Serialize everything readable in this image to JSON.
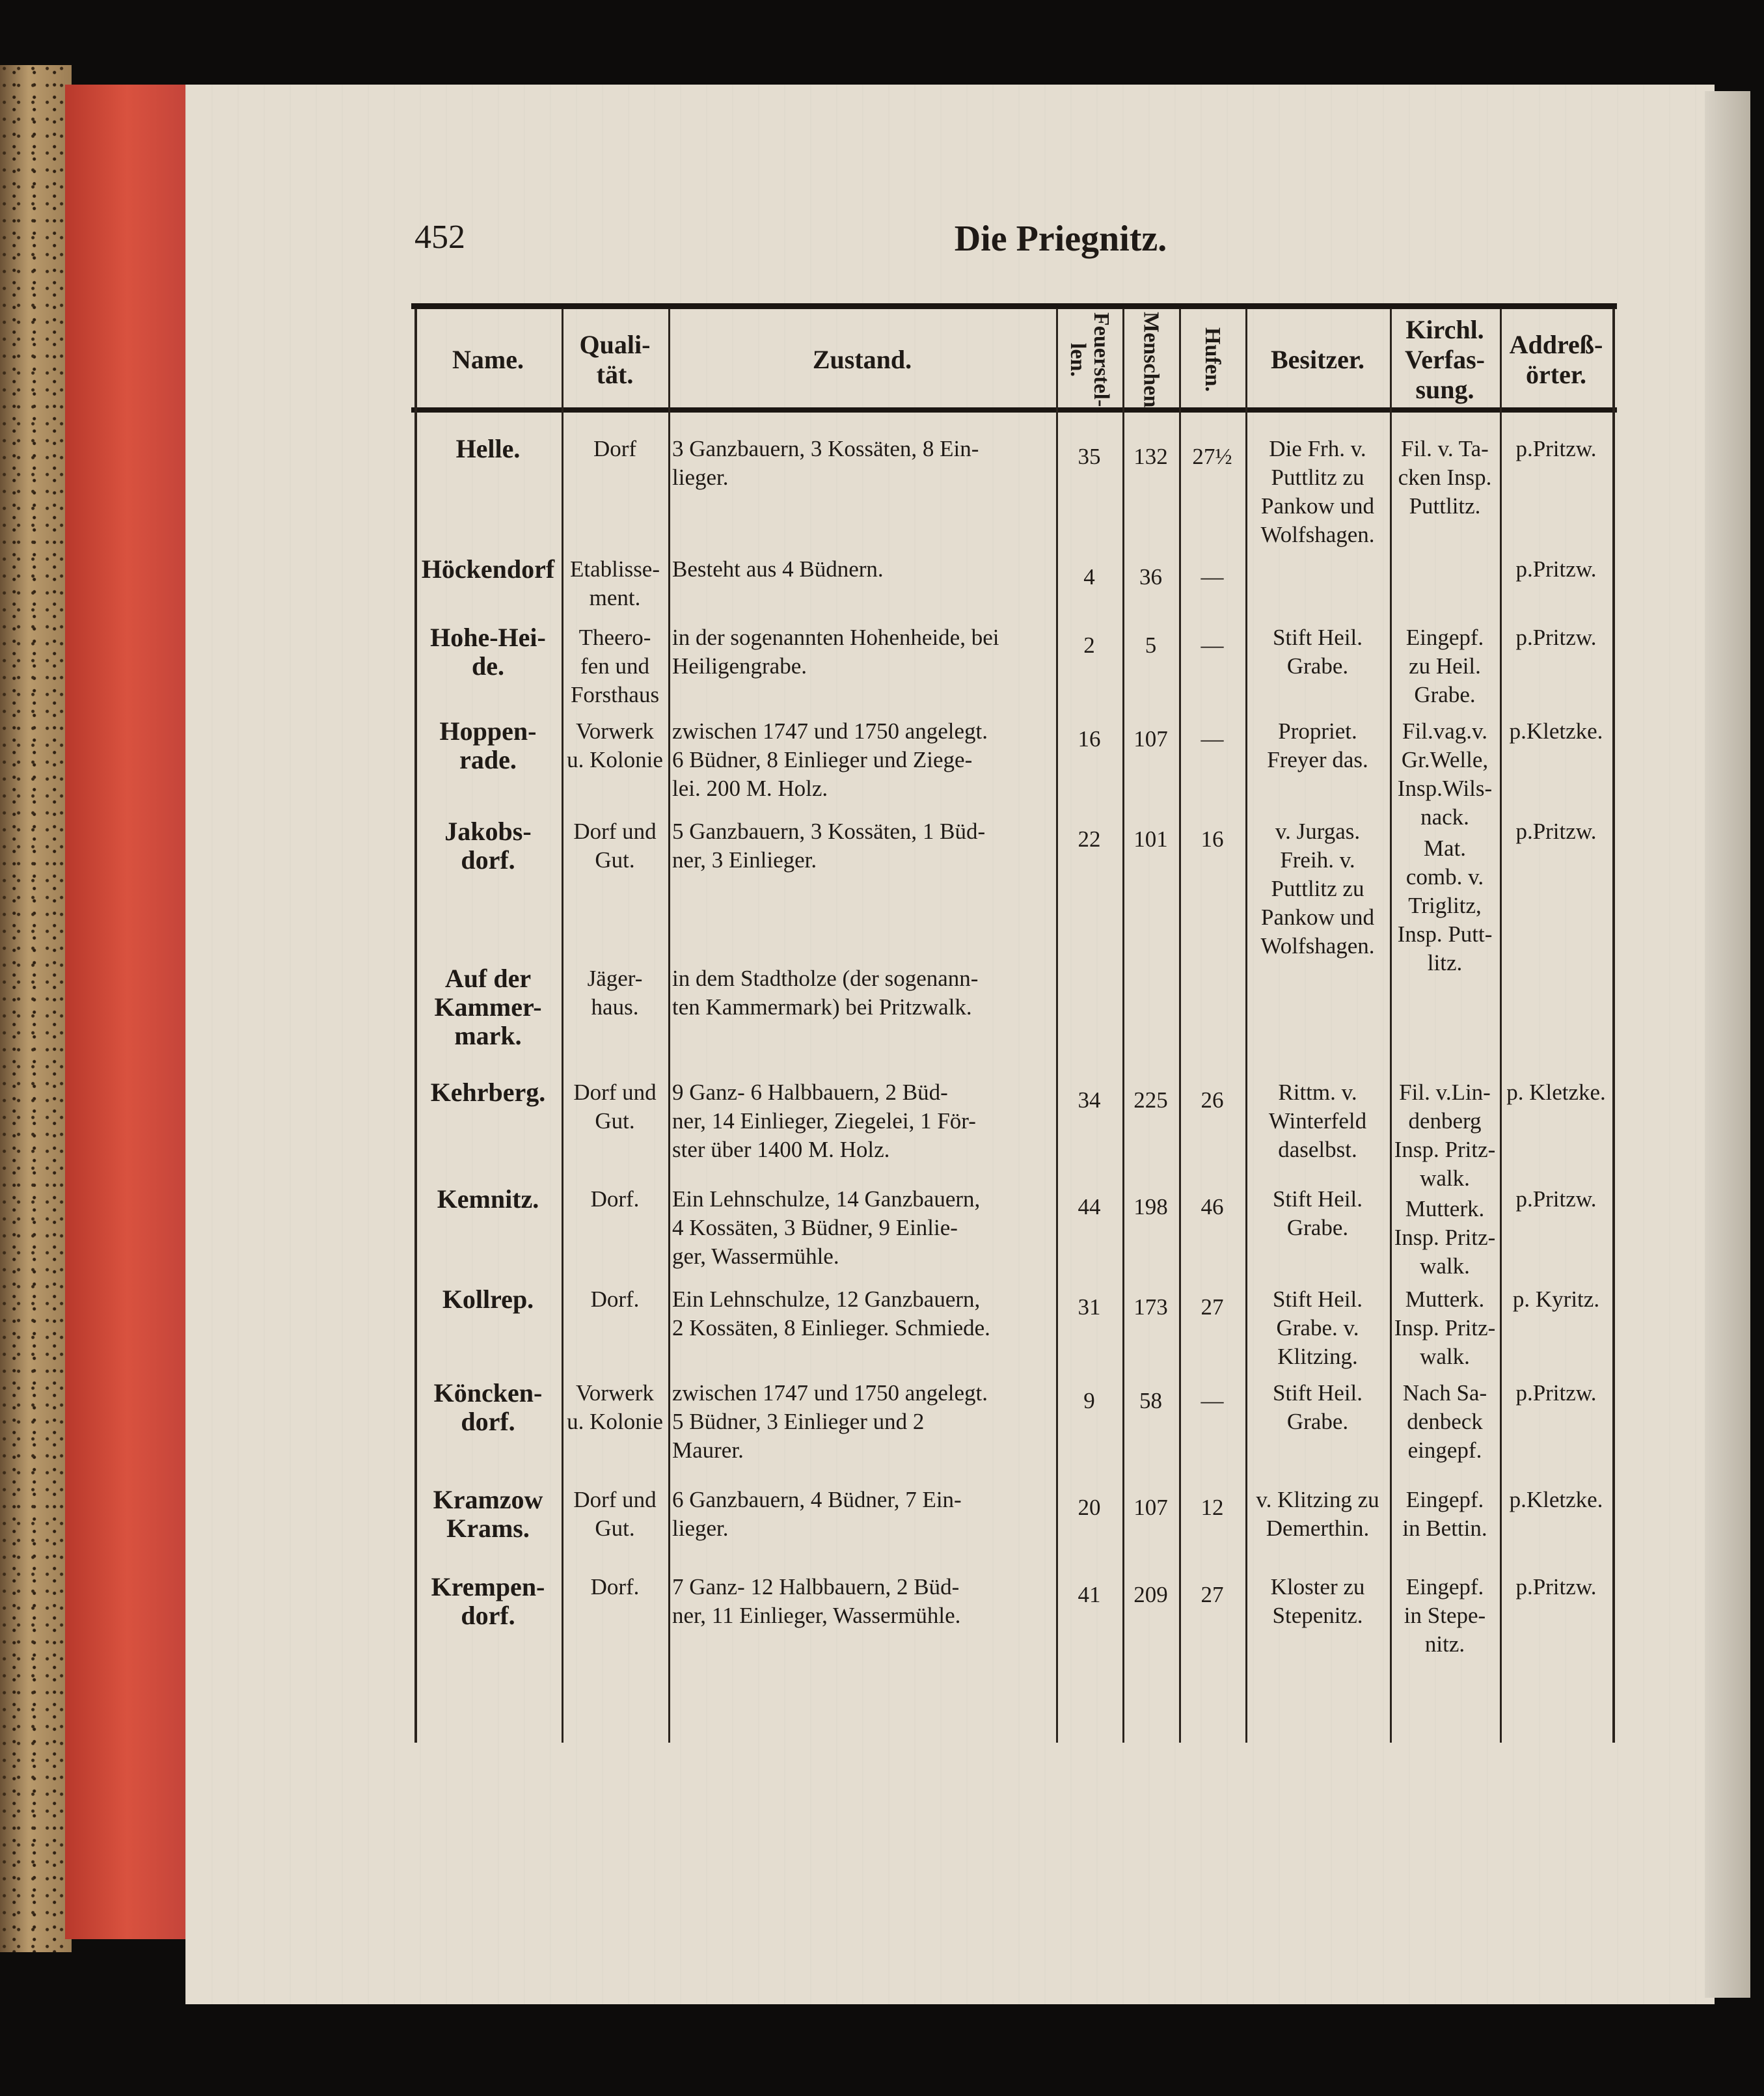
{
  "page_number": "452",
  "running_title": "Die Priegnitz.",
  "table": {
    "headers": [
      "Name.",
      "Quali-\ntät.",
      "Zustand.",
      "Feuerstel-\nlen.",
      "Menschen",
      "Hufen.",
      "Besitzer.",
      "Kirchl.\nVerfas-\nsung.",
      "Addreß-\nörter."
    ],
    "rows": [
      {
        "name": "Helle.",
        "qualitaet": "Dorf",
        "zustand": "3 Ganzbauern, 3 Kossäten, 8 Ein-\nlieger.",
        "feuerstellen": "35",
        "menschen": "132",
        "hufen": "27½",
        "besitzer": "Die Frh. v.\nPuttlitz zu\nPankow und\nWolfshagen.",
        "kirchl": "Fil. v. Ta-\ncken Insp.\nPuttlitz.",
        "addressorte": "p.Pritzw."
      },
      {
        "name": "Höckendorf",
        "qualitaet": "Etablisse-\nment.",
        "zustand": "Besteht aus 4 Büdnern.",
        "feuerstellen": "4",
        "menschen": "36",
        "hufen": "—",
        "besitzer": "",
        "kirchl": "",
        "addressorte": "p.Pritzw."
      },
      {
        "name": "Hohe-Hei-\nde.",
        "qualitaet": "Theero-\nfen und\nForsthaus",
        "zustand": "in der sogenannten Hohenheide, bei\nHeiligengrabe.",
        "feuerstellen": "2",
        "menschen": "5",
        "hufen": "—",
        "besitzer": "Stift Heil.\nGrabe.",
        "kirchl": "Eingepf.\nzu Heil.\nGrabe.",
        "addressorte": "p.Pritzw."
      },
      {
        "name": "Hoppen-\nrade.",
        "qualitaet": "Vorwerk\nu. Kolonie",
        "zustand": "zwischen 1747 und 1750 angelegt.\n6 Büdner, 8 Einlieger und Ziege-\nlei. 200 M. Holz.",
        "feuerstellen": "16",
        "menschen": "107",
        "hufen": "—",
        "besitzer": "Propriet.\nFreyer das.",
        "kirchl": "Fil.vag.v.\nGr.Welle,\nInsp.Wils-\nnack.",
        "addressorte": "p.Kletzke."
      },
      {
        "name": "Jakobs-\ndorf.",
        "qualitaet": "Dorf und\nGut.",
        "zustand": "5 Ganzbauern, 3 Kossäten, 1 Büd-\nner, 3 Einlieger.",
        "feuerstellen": "22",
        "menschen": "101",
        "hufen": "16",
        "besitzer": "v. Jurgas.\nFreih. v.\nPuttlitz zu\nPankow und\nWolfshagen.",
        "kirchl": "Mat.\ncomb. v.\nTriglitz,\nInsp. Putt-\nlitz.",
        "addressorte": "p.Pritzw."
      },
      {
        "name": "Auf der\nKammer-\nmark.",
        "qualitaet": "Jäger-\nhaus.",
        "zustand": "in dem Stadtholze (der sogenann-\nten Kammermark) bei Pritzwalk.",
        "feuerstellen": "",
        "menschen": "",
        "hufen": "",
        "besitzer": "",
        "kirchl": "",
        "addressorte": ""
      },
      {
        "name": "Kehrberg.",
        "qualitaet": "Dorf und\nGut.",
        "zustand": "9 Ganz- 6 Halbbauern, 2 Büd-\nner, 14 Einlieger, Ziegelei, 1 För-\nster über 1400 M. Holz.",
        "feuerstellen": "34",
        "menschen": "225",
        "hufen": "26",
        "besitzer": "Rittm. v.\nWinterfeld\ndaselbst.",
        "kirchl": "Fil. v.Lin-\ndenberg\nInsp. Pritz-\nwalk.",
        "addressorte": "p. Kletzke."
      },
      {
        "name": "Kemnitz.",
        "qualitaet": "Dorf.",
        "zustand": "Ein Lehnschulze, 14 Ganzbauern,\n4 Kossäten, 3 Büdner, 9 Einlie-\nger, Wassermühle.",
        "feuerstellen": "44",
        "menschen": "198",
        "hufen": "46",
        "besitzer": "Stift Heil.\nGrabe.",
        "kirchl": "Mutterk.\nInsp. Pritz-\nwalk.",
        "addressorte": "p.Pritzw."
      },
      {
        "name": "Kollrep.",
        "qualitaet": "Dorf.",
        "zustand": "Ein Lehnschulze, 12 Ganzbauern,\n2 Kossäten, 8 Einlieger. Schmiede.",
        "feuerstellen": "31",
        "menschen": "173",
        "hufen": "27",
        "besitzer": "Stift Heil.\nGrabe. v.\nKlitzing.",
        "kirchl": "Mutterk.\nInsp. Pritz-\nwalk.",
        "addressorte": "p. Kyritz."
      },
      {
        "name": "Köncken-\ndorf.",
        "qualitaet": "Vorwerk\nu. Kolonie",
        "zustand": "zwischen 1747 und 1750 angelegt.\n5 Büdner, 3 Einlieger und 2\nMaurer.",
        "feuerstellen": "9",
        "menschen": "58",
        "hufen": "—",
        "besitzer": "Stift Heil.\nGrabe.",
        "kirchl": "Nach Sa-\ndenbeck\neingepf.",
        "addressorte": "p.Pritzw."
      },
      {
        "name": "Kramzow\nKrams.",
        "qualitaet": "Dorf und\nGut.",
        "zustand": "6 Ganzbauern, 4 Büdner, 7 Ein-\nlieger.",
        "feuerstellen": "20",
        "menschen": "107",
        "hufen": "12",
        "besitzer": "v. Klitzing zu\nDemerthin.",
        "kirchl": "Eingepf.\nin Bettin.",
        "addressorte": "p.Kletzke."
      },
      {
        "name": "Krempen-\ndorf.",
        "qualitaet": "Dorf.",
        "zustand": "7 Ganz- 12 Halbbauern, 2 Büd-\nner, 11 Einlieger, Wassermühle.",
        "feuerstellen": "41",
        "menschen": "209",
        "hufen": "27",
        "besitzer": "Kloster zu\nStepenitz.",
        "kirchl": "Eingepf.\nin Stepe-\nnitz.",
        "addressorte": "p.Pritzw."
      }
    ]
  }
}
